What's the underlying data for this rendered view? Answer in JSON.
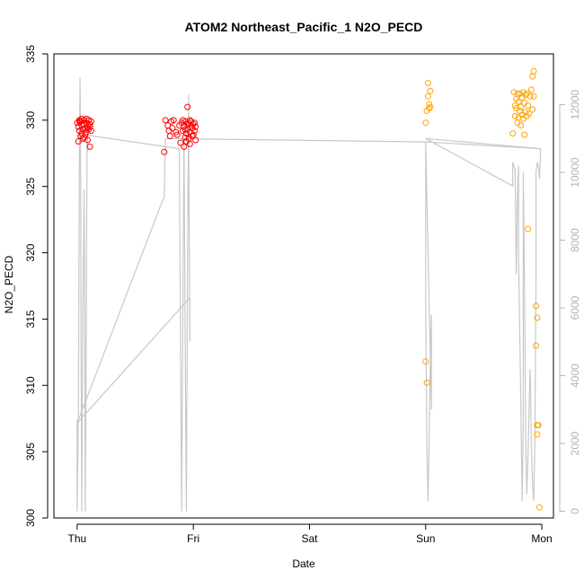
{
  "chart_data": {
    "type": "scatter",
    "title": "ATOM2 Northeast_Pacific_1 N2O_PECD",
    "xlabel": "Date",
    "ylabel": "N2O_PECD",
    "x_ticks": [
      "Thu",
      "Fri",
      "Sat",
      "Sun",
      "Mon"
    ],
    "x_range_days": [
      -0.2,
      4.1
    ],
    "y_left": {
      "range": [
        300,
        335
      ],
      "ticks": [
        300,
        305,
        310,
        315,
        320,
        325,
        330,
        335
      ]
    },
    "y_right": {
      "range": [
        -200,
        13500
      ],
      "ticks": [
        0,
        2000,
        4000,
        6000,
        8000,
        10000,
        12000
      ]
    },
    "colors": {
      "red_points": "#ff0000",
      "orange_points": "#ffa500",
      "altitude_line": "#c8c8c8",
      "axis": "#000000",
      "right_axis": "#b3b3b3"
    },
    "grid": false,
    "series": [
      {
        "color": "#ff0000",
        "axis": "left",
        "points": [
          [
            0.0,
            329.8
          ],
          [
            0.01,
            329.5
          ],
          [
            0.02,
            330.0
          ],
          [
            0.02,
            329.2
          ],
          [
            0.03,
            328.8
          ],
          [
            0.03,
            329.9
          ],
          [
            0.04,
            330.1
          ],
          [
            0.04,
            329.6
          ],
          [
            0.05,
            329.3
          ],
          [
            0.05,
            328.6
          ],
          [
            0.06,
            329.7
          ],
          [
            0.06,
            330.0
          ],
          [
            0.07,
            329.4
          ],
          [
            0.07,
            328.9
          ],
          [
            0.08,
            329.8
          ],
          [
            0.08,
            329.1
          ],
          [
            0.09,
            328.5
          ],
          [
            0.09,
            329.6
          ],
          [
            0.1,
            330.0
          ],
          [
            0.1,
            329.3
          ],
          [
            0.11,
            328.0
          ],
          [
            0.11,
            329.5
          ],
          [
            0.12,
            329.9
          ],
          [
            0.01,
            328.4
          ],
          [
            0.04,
            329.0
          ],
          [
            0.08,
            330.1
          ],
          [
            0.11,
            329.7
          ],
          [
            0.12,
            329.2
          ],
          [
            0.06,
            328.7
          ],
          [
            0.02,
            329.9
          ],
          [
            0.09,
            329.4
          ],
          [
            0.75,
            327.6
          ],
          [
            0.76,
            330.0
          ],
          [
            0.78,
            329.6
          ],
          [
            0.79,
            329.2
          ],
          [
            0.8,
            328.8
          ],
          [
            0.81,
            329.9
          ],
          [
            0.82,
            329.4
          ],
          [
            0.83,
            330.0
          ],
          [
            0.85,
            329.1
          ],
          [
            0.86,
            328.9
          ],
          [
            0.88,
            329.6
          ],
          [
            0.89,
            328.3
          ],
          [
            0.9,
            329.8
          ],
          [
            0.91,
            329.2
          ],
          [
            0.91,
            330.0
          ],
          [
            0.92,
            328.0
          ],
          [
            0.92,
            329.5
          ],
          [
            0.93,
            328.7
          ],
          [
            0.93,
            329.9
          ],
          [
            0.94,
            329.0
          ],
          [
            0.94,
            328.4
          ],
          [
            0.95,
            329.7
          ],
          [
            0.95,
            331.0
          ],
          [
            0.95,
            329.3
          ],
          [
            0.96,
            328.6
          ],
          [
            0.96,
            329.8
          ],
          [
            0.97,
            329.1
          ],
          [
            0.97,
            328.2
          ],
          [
            0.98,
            329.6
          ],
          [
            0.98,
            329.9
          ],
          [
            0.99,
            328.8
          ],
          [
            0.99,
            329.4
          ],
          [
            1.0,
            329.7
          ],
          [
            1.0,
            328.9
          ],
          [
            1.01,
            329.2
          ],
          [
            1.01,
            329.8
          ],
          [
            1.02,
            329.5
          ],
          [
            1.02,
            328.5
          ],
          [
            0.97,
            330.0
          ],
          [
            0.93,
            329.3
          ]
        ]
      },
      {
        "color": "#ffa500",
        "axis": "left",
        "points": [
          [
            3.0,
            311.8
          ],
          [
            3.01,
            310.2
          ],
          [
            3.0,
            329.8
          ],
          [
            3.01,
            330.7
          ],
          [
            3.02,
            331.8
          ],
          [
            3.02,
            332.8
          ],
          [
            3.03,
            331.2
          ],
          [
            3.03,
            330.9
          ],
          [
            3.04,
            332.2
          ],
          [
            3.04,
            331.0
          ],
          [
            3.75,
            329.0
          ],
          [
            3.76,
            332.1
          ],
          [
            3.77,
            331.1
          ],
          [
            3.77,
            330.3
          ],
          [
            3.78,
            331.6
          ],
          [
            3.78,
            330.9
          ],
          [
            3.79,
            332.0
          ],
          [
            3.79,
            329.8
          ],
          [
            3.8,
            330.2
          ],
          [
            3.8,
            331.4
          ],
          [
            3.81,
            332.0
          ],
          [
            3.81,
            330.7
          ],
          [
            3.82,
            331.0
          ],
          [
            3.82,
            329.6
          ],
          [
            3.83,
            330.4
          ],
          [
            3.83,
            331.7
          ],
          [
            3.84,
            332.1
          ],
          [
            3.84,
            330.1
          ],
          [
            3.85,
            331.3
          ],
          [
            3.85,
            328.9
          ],
          [
            3.86,
            330.6
          ],
          [
            3.86,
            331.9
          ],
          [
            3.87,
            330.3
          ],
          [
            3.87,
            332.0
          ],
          [
            3.88,
            331.1
          ],
          [
            3.89,
            330.5
          ],
          [
            3.9,
            331.8
          ],
          [
            3.91,
            332.3
          ],
          [
            3.92,
            330.8
          ],
          [
            3.92,
            333.3
          ],
          [
            3.93,
            333.7
          ],
          [
            3.93,
            331.8
          ],
          [
            3.88,
            321.8
          ],
          [
            3.95,
            316.0
          ],
          [
            3.96,
            315.1
          ],
          [
            3.95,
            313.0
          ],
          [
            3.96,
            307.0
          ],
          [
            3.97,
            307.0
          ],
          [
            3.96,
            306.3
          ],
          [
            3.98,
            300.8
          ]
        ]
      }
    ],
    "altitude_line": {
      "axis": "right",
      "color": "#c8c8c8",
      "points": [
        [
          0.0,
          2700
        ],
        [
          0.0,
          0
        ],
        [
          0.01,
          2800
        ],
        [
          0.02,
          10500
        ],
        [
          0.025,
          12800
        ],
        [
          0.03,
          10000
        ],
        [
          0.035,
          4000
        ],
        [
          0.04,
          0
        ],
        [
          0.05,
          6000
        ],
        [
          0.06,
          9500
        ],
        [
          0.065,
          6000
        ],
        [
          0.07,
          0
        ],
        [
          0.075,
          3000
        ],
        [
          0.08,
          7000
        ],
        [
          0.085,
          11000
        ],
        [
          0.09,
          10600
        ],
        [
          0.09,
          11100
        ],
        [
          0.88,
          10700
        ],
        [
          0.89,
          5000
        ],
        [
          0.9,
          0
        ],
        [
          0.91,
          6000
        ],
        [
          0.92,
          11000
        ],
        [
          0.93,
          5000
        ],
        [
          0.94,
          0
        ],
        [
          0.95,
          7000
        ],
        [
          0.96,
          12300
        ],
        [
          0.96,
          11000
        ],
        [
          0.97,
          5000
        ],
        [
          0.97,
          6300
        ],
        [
          0.0,
          2600
        ],
        [
          0.75,
          9300
        ],
        [
          0.76,
          11000
        ],
        [
          3.0,
          10900
        ],
        [
          3.0,
          6000
        ],
        [
          3.01,
          2000
        ],
        [
          3.02,
          300
        ],
        [
          3.03,
          2000
        ],
        [
          3.04,
          4500
        ],
        [
          3.05,
          5800
        ],
        [
          3.05,
          3000
        ],
        [
          3.0,
          10900
        ],
        [
          3.99,
          10700
        ],
        [
          3.0,
          11000
        ],
        [
          3.75,
          9600
        ],
        [
          3.75,
          10300
        ],
        [
          3.77,
          10100
        ],
        [
          3.78,
          7000
        ],
        [
          3.79,
          9300
        ],
        [
          3.8,
          10200
        ],
        [
          3.8,
          7500
        ],
        [
          3.82,
          3000
        ],
        [
          3.83,
          300
        ],
        [
          3.84,
          2500
        ],
        [
          3.84,
          10000
        ],
        [
          3.85,
          7000
        ],
        [
          3.86,
          2500
        ],
        [
          3.87,
          500
        ],
        [
          3.88,
          1500
        ],
        [
          3.89,
          3000
        ],
        [
          3.9,
          4200
        ],
        [
          3.91,
          2000
        ],
        [
          3.92,
          800
        ],
        [
          3.93,
          300
        ],
        [
          3.94,
          2000
        ],
        [
          3.95,
          7000
        ],
        [
          3.95,
          10000
        ],
        [
          3.96,
          10300
        ],
        [
          3.97,
          10200
        ],
        [
          3.98,
          9800
        ],
        [
          3.99,
          10700
        ]
      ]
    }
  }
}
